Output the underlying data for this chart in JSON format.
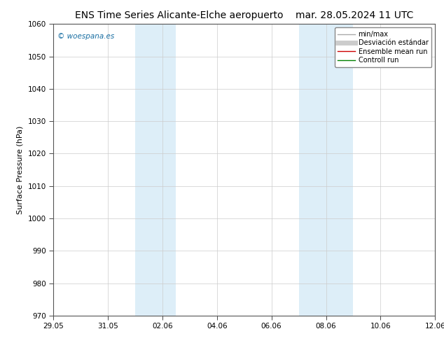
{
  "title_left": "ENS Time Series Alicante-Elche aeropuerto",
  "title_right": "mar. 28.05.2024 11 UTC",
  "ylabel": "Surface Pressure (hPa)",
  "ylim": [
    970,
    1060
  ],
  "yticks": [
    970,
    980,
    990,
    1000,
    1010,
    1020,
    1030,
    1040,
    1050,
    1060
  ],
  "xlim_start": 0,
  "xlim_end": 14,
  "xtick_positions": [
    0,
    2,
    4,
    6,
    8,
    10,
    12,
    14
  ],
  "xtick_labels": [
    "29.05",
    "31.05",
    "02.06",
    "04.06",
    "06.06",
    "08.06",
    "10.06",
    "12.06"
  ],
  "shaded_regions": [
    {
      "x_start": 3.0,
      "x_end": 3.5,
      "color": "#ddeef8"
    },
    {
      "x_start": 3.5,
      "x_end": 4.5,
      "color": "#ddeef8"
    },
    {
      "x_start": 9.0,
      "x_end": 9.5,
      "color": "#ddeef8"
    },
    {
      "x_start": 9.5,
      "x_end": 11.0,
      "color": "#ddeef8"
    }
  ],
  "watermark_text": "© woespana.es",
  "watermark_color": "#1a6fa3",
  "background_color": "#ffffff",
  "plot_bg_color": "#ffffff",
  "grid_color": "#cccccc",
  "legend_entries": [
    {
      "label": "min/max",
      "color": "#aaaaaa",
      "lw": 1.0
    },
    {
      "label": "Desviación estándar",
      "color": "#cccccc",
      "lw": 5.0
    },
    {
      "label": "Ensemble mean run",
      "color": "#cc0000",
      "lw": 1.0
    },
    {
      "label": "Controll run",
      "color": "#008000",
      "lw": 1.0
    }
  ],
  "title_fontsize": 10,
  "axis_label_fontsize": 8,
  "tick_fontsize": 7.5,
  "watermark_fontsize": 7.5,
  "legend_fontsize": 7
}
